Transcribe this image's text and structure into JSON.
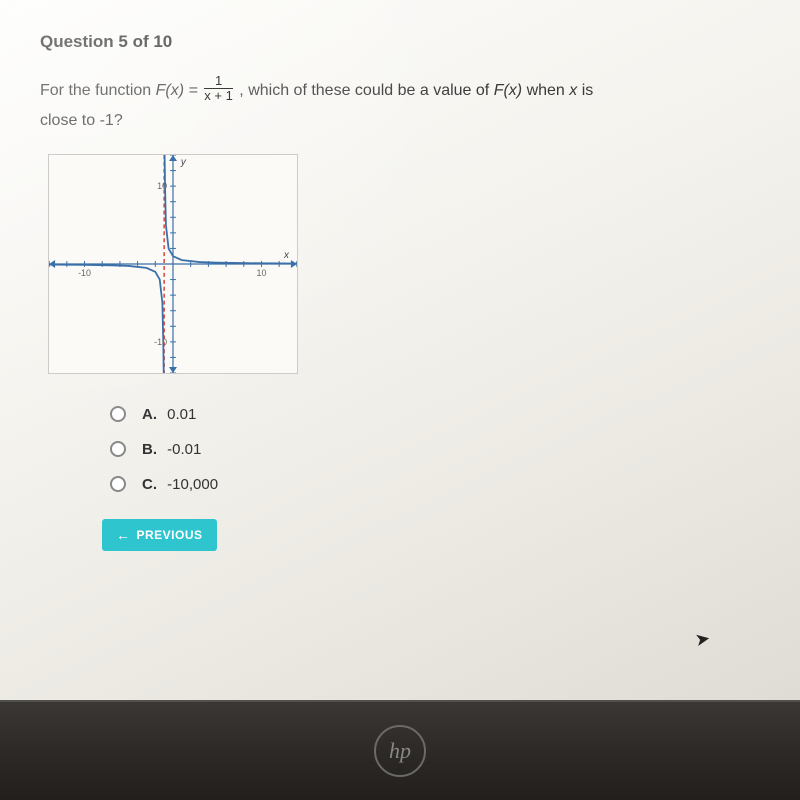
{
  "header": {
    "text": "Question 5 of 10"
  },
  "question": {
    "prefix": "For the function ",
    "fn_lhs": "F(x) = ",
    "frac_num": "1",
    "frac_den": "x + 1",
    "mid": ", which of these could be a value of ",
    "fn_call": "F(x)",
    "tail": " when ",
    "var": "x",
    "tail2": " is",
    "line2": "close to -1?"
  },
  "graph": {
    "type": "line",
    "background_color": "#fbfaf7",
    "border_color": "#cccccc",
    "axis_color": "#3a6fa8",
    "curve_color": "#3a6fa8",
    "asymptote_color": "#d9443a",
    "grid_color": "#b8c4d0",
    "xlim": [
      -14,
      14
    ],
    "ylim": [
      -14,
      14
    ],
    "tick_step": 2,
    "labeled_ticks": {
      "x": [
        -10,
        10
      ],
      "y": [
        10,
        -10
      ]
    },
    "y_axis_label": "y",
    "x_axis_label": "x",
    "vertical_asymptote_x": -1,
    "points_left": [
      [
        -14,
        -0.08
      ],
      [
        -10,
        -0.11
      ],
      [
        -7,
        -0.17
      ],
      [
        -5,
        -0.25
      ],
      [
        -3,
        -0.5
      ],
      [
        -2,
        -1
      ],
      [
        -1.5,
        -2
      ],
      [
        -1.2,
        -5
      ],
      [
        -1.1,
        -10
      ],
      [
        -1.05,
        -14
      ]
    ],
    "points_right": [
      [
        -0.95,
        14
      ],
      [
        -0.9,
        10
      ],
      [
        -0.8,
        5
      ],
      [
        -0.5,
        2
      ],
      [
        0,
        1
      ],
      [
        1,
        0.5
      ],
      [
        3,
        0.25
      ],
      [
        5,
        0.17
      ],
      [
        10,
        0.09
      ],
      [
        14,
        0.07
      ]
    ],
    "label_fontsize": 9,
    "tick_len": 3,
    "curve_width": 1.8,
    "asymptote_dash": "4,3"
  },
  "options": {
    "items": [
      {
        "letter": "A.",
        "text": "0.01"
      },
      {
        "letter": "B.",
        "text": "-0.01"
      },
      {
        "letter": "C.",
        "text": "-10,000"
      }
    ]
  },
  "prev_button": {
    "label": "PREVIOUS",
    "bg": "#2fc5cf"
  },
  "logo": {
    "text": "hp"
  }
}
